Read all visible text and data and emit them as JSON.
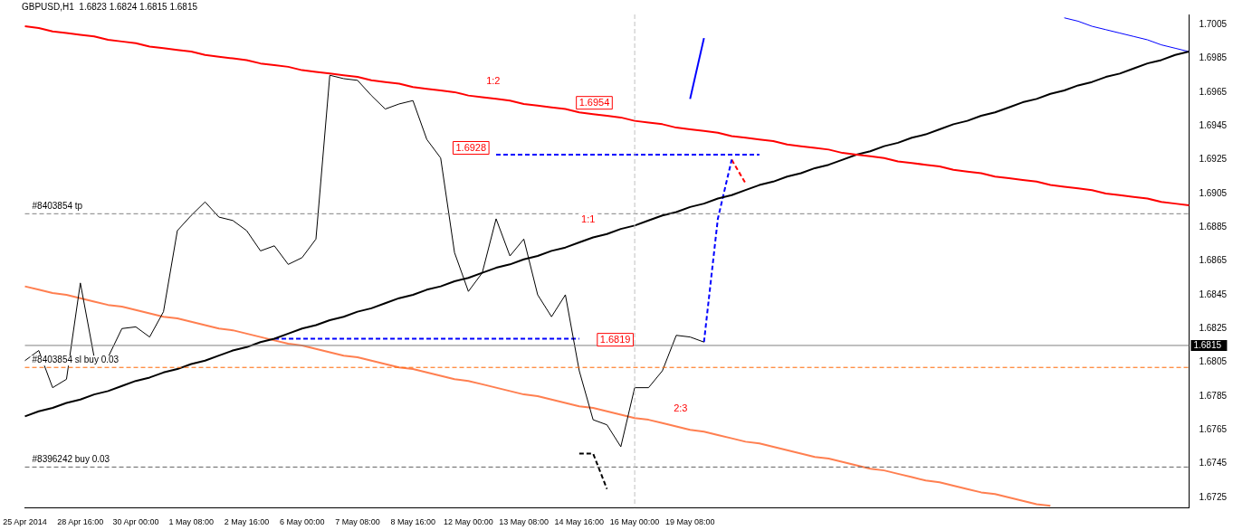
{
  "chart_data": {
    "type": "line",
    "title": "GBPUSD,H1  1.6823 1.6824 1.6815 1.6815",
    "categories": [
      "25 Apr 2014",
      null,
      null,
      null,
      "28 Apr 16:00",
      null,
      null,
      null,
      "30 Apr 00:00",
      null,
      null,
      null,
      "1 May 08:00",
      null,
      null,
      null,
      "2 May 16:00",
      null,
      null,
      null,
      "6 May 00:00",
      null,
      null,
      null,
      "7 May 08:00",
      null,
      null,
      null,
      "8 May 16:00",
      null,
      null,
      null,
      "12 May 00:00",
      null,
      null,
      null,
      "13 May 08:00",
      null,
      null,
      null,
      "14 May 16:00",
      null,
      null,
      null,
      "16 May 00:00",
      null,
      null,
      null,
      "19 May 08:00",
      null,
      null,
      null,
      null,
      null,
      null,
      null,
      null,
      null,
      null,
      null,
      null,
      null,
      null,
      null,
      null,
      null,
      null,
      null,
      null,
      null,
      null,
      null,
      null,
      null,
      null,
      null,
      null,
      null,
      null,
      null,
      null,
      null,
      null,
      null,
      null
    ],
    "ylim": [
      1.6719,
      1.7011
    ],
    "yticks": [
      1.6725,
      1.6745,
      1.6765,
      1.6785,
      1.6805,
      1.6825,
      1.6845,
      1.6865,
      1.6885,
      1.6905,
      1.6925,
      1.6945,
      1.6965,
      1.6985,
      1.7005
    ],
    "legend": false,
    "marker": "none",
    "series": [
      {
        "color": "#000000",
        "values": [
          1.6806,
          1.6812,
          1.679,
          1.6795,
          1.6852,
          1.6808,
          1.6808,
          1.6825,
          1.6826,
          1.682,
          1.6835,
          1.6883,
          1.6892,
          1.69,
          1.6891,
          1.6889,
          1.6883,
          1.6871,
          1.6874,
          1.6863,
          1.6867,
          1.6878,
          1.6975,
          1.6973,
          1.6972,
          1.6963,
          1.6955,
          1.6958,
          1.696,
          1.6937,
          1.6926,
          1.687,
          1.6847,
          1.6858,
          1.689,
          1.6868,
          1.6878,
          1.6845,
          1.6832,
          1.6845,
          1.68,
          1.6771,
          1.6768,
          1.6755,
          1.679,
          1.679,
          1.68,
          1.6821,
          1.682,
          1.6817,
          null,
          null,
          null,
          null,
          null,
          null,
          null,
          null,
          null,
          null,
          null,
          null,
          null,
          null,
          null,
          null,
          null,
          null,
          null,
          null,
          null,
          null,
          null,
          null,
          null,
          null,
          null,
          null,
          null,
          null,
          null,
          null,
          null,
          null,
          null
        ]
      },
      {
        "color": "#ff0000",
        "values": [
          1.7004,
          1.7003,
          1.7001,
          1.7,
          1.6999,
          1.6998,
          1.6996,
          1.6995,
          1.6994,
          1.6992,
          1.6991,
          1.699,
          1.6989,
          1.6987,
          1.6986,
          1.6985,
          1.6984,
          1.6982,
          1.6981,
          1.698,
          1.6978,
          1.6977,
          1.6976,
          1.6975,
          1.6974,
          1.6972,
          1.6971,
          1.697,
          1.6968,
          1.6967,
          1.6966,
          1.6965,
          1.6963,
          1.6962,
          1.6961,
          1.696,
          1.6958,
          1.6957,
          1.6956,
          1.6955,
          1.6953,
          1.6952,
          1.6951,
          1.695,
          1.6948,
          1.6947,
          1.6946,
          1.6944,
          1.6943,
          1.6942,
          1.6941,
          1.6939,
          1.6938,
          1.6937,
          1.6936,
          1.6934,
          1.6933,
          1.6932,
          1.6931,
          1.6929,
          1.6928,
          1.6927,
          1.6926,
          1.6924,
          1.6923,
          1.6922,
          1.6921,
          1.6919,
          1.6918,
          1.6917,
          1.6915,
          1.6914,
          1.6913,
          1.6912,
          1.691,
          1.6909,
          1.6908,
          1.6907,
          1.6905,
          1.6904,
          1.6903,
          1.6902,
          1.69,
          1.6899,
          1.6898
        ]
      },
      {
        "color": "#000000",
        "values": [
          1.6773,
          1.6776,
          1.6778,
          1.6781,
          1.6783,
          1.6786,
          1.6788,
          1.6791,
          1.6794,
          1.6796,
          1.6799,
          1.6801,
          1.6804,
          1.6806,
          1.6809,
          1.6812,
          1.6814,
          1.6817,
          1.6819,
          1.6822,
          1.6825,
          1.6827,
          1.683,
          1.6832,
          1.6835,
          1.6837,
          1.684,
          1.6843,
          1.6845,
          1.6848,
          1.685,
          1.6853,
          1.6855,
          1.6858,
          1.6861,
          1.6863,
          1.6866,
          1.6868,
          1.6871,
          1.6873,
          1.6876,
          1.6879,
          1.6881,
          1.6884,
          1.6886,
          1.6889,
          1.6892,
          1.6894,
          1.6897,
          1.6899,
          1.6902,
          1.6904,
          1.6907,
          1.691,
          1.6912,
          1.6915,
          1.6917,
          1.692,
          1.6922,
          1.6925,
          1.6928,
          1.693,
          1.6933,
          1.6935,
          1.6938,
          1.694,
          1.6943,
          1.6946,
          1.6948,
          1.6951,
          1.6953,
          1.6956,
          1.6959,
          1.6961,
          1.6964,
          1.6966,
          1.6969,
          1.6971,
          1.6974,
          1.6976,
          1.6979,
          1.6982,
          1.6984,
          1.6987,
          1.6989
        ]
      },
      {
        "color": "#ff7f50",
        "values": [
          1.685,
          1.6848,
          1.6846,
          1.6845,
          1.6843,
          1.6841,
          1.6839,
          1.6838,
          1.6836,
          1.6834,
          1.6832,
          1.6831,
          1.6829,
          1.6827,
          1.6825,
          1.6824,
          1.6822,
          1.682,
          1.6818,
          1.6816,
          1.6815,
          1.6813,
          1.6811,
          1.6809,
          1.6808,
          1.6806,
          1.6804,
          1.6802,
          1.6801,
          1.6799,
          1.6797,
          1.6795,
          1.6794,
          1.6792,
          1.679,
          1.6788,
          1.6786,
          1.6785,
          1.6783,
          1.6781,
          1.6779,
          1.6778,
          1.6776,
          1.6774,
          1.6772,
          1.6771,
          1.6769,
          1.6767,
          1.6765,
          1.6764,
          1.6762,
          1.676,
          1.6758,
          1.6757,
          1.6755,
          1.6753,
          1.6751,
          1.6749,
          1.6748,
          1.6746,
          1.6744,
          1.6742,
          1.6741,
          1.6739,
          1.6737,
          1.6735,
          1.6734,
          1.6732,
          1.673,
          1.6728,
          1.6727,
          1.6725,
          1.6723,
          1.6721,
          1.672,
          null,
          null,
          null,
          null,
          null,
          null,
          null,
          null,
          null,
          null
        ]
      },
      {
        "color": "#0000ff",
        "values": [
          null,
          null,
          null,
          null,
          null,
          null,
          null,
          null,
          null,
          null,
          null,
          null,
          null,
          null,
          null,
          null,
          null,
          null,
          null,
          null,
          null,
          null,
          null,
          null,
          null,
          null,
          null,
          null,
          null,
          null,
          null,
          null,
          null,
          null,
          null,
          null,
          null,
          null,
          null,
          null,
          null,
          null,
          null,
          null,
          null,
          null,
          null,
          null,
          1.6961,
          1.6997,
          null,
          null,
          null,
          null,
          null,
          null,
          null,
          null,
          null,
          null,
          null,
          null,
          null,
          null,
          null,
          null,
          null,
          null,
          null,
          null,
          null,
          null,
          null,
          null,
          null,
          null,
          null,
          null,
          null,
          null,
          null,
          null,
          null,
          null,
          null
        ]
      },
      {
        "color": "#0000ff",
        "values": [
          null,
          null,
          null,
          null,
          null,
          null,
          null,
          null,
          null,
          null,
          null,
          null,
          null,
          null,
          null,
          null,
          null,
          null,
          null,
          null,
          null,
          null,
          null,
          null,
          null,
          null,
          null,
          null,
          null,
          null,
          null,
          null,
          null,
          null,
          null,
          null,
          null,
          null,
          null,
          null,
          null,
          null,
          null,
          null,
          null,
          null,
          null,
          null,
          null,
          null,
          null,
          null,
          null,
          null,
          null,
          null,
          null,
          null,
          null,
          null,
          null,
          null,
          null,
          null,
          null,
          null,
          null,
          null,
          null,
          null,
          null,
          null,
          null,
          null,
          null,
          1.7009,
          1.7007,
          1.7004,
          1.7002,
          1.7,
          1.6998,
          1.6996,
          1.6993,
          1.6991,
          1.6989
        ]
      },
      {
        "color": "#0000ff",
        "line_style": "dashed",
        "values": [
          null,
          null,
          null,
          null,
          null,
          null,
          null,
          null,
          null,
          null,
          null,
          null,
          null,
          null,
          null,
          null,
          null,
          null,
          1.6819,
          1.6819,
          1.6819,
          1.6819,
          1.6819,
          1.6819,
          1.6819,
          1.6819,
          1.6819,
          1.6819,
          1.6819,
          1.6819,
          1.6819,
          1.6819,
          1.6819,
          1.6819,
          1.6819,
          1.6819,
          1.6819,
          1.6819,
          1.6819,
          1.6819,
          1.6819,
          null,
          null,
          null,
          null,
          null,
          null,
          null,
          null,
          null,
          null,
          null,
          null,
          null,
          null,
          null,
          null,
          null,
          null,
          null,
          null,
          null,
          null,
          null,
          null,
          null,
          null,
          null,
          null,
          null,
          null,
          null,
          null,
          null,
          null,
          null,
          null,
          null,
          null,
          null,
          null,
          null,
          null,
          null,
          null
        ]
      },
      {
        "color": "#0000ff",
        "line_style": "dashed",
        "values": [
          null,
          null,
          null,
          null,
          null,
          null,
          null,
          null,
          null,
          null,
          null,
          null,
          null,
          null,
          null,
          null,
          null,
          null,
          null,
          null,
          null,
          null,
          null,
          null,
          null,
          null,
          null,
          null,
          null,
          null,
          null,
          null,
          null,
          null,
          1.6928,
          1.6928,
          1.6928,
          1.6928,
          1.6928,
          1.6928,
          1.6928,
          1.6928,
          1.6928,
          1.6928,
          1.6928,
          1.6928,
          1.6928,
          1.6928,
          1.6928,
          1.6928,
          1.6928,
          1.6928,
          1.6928,
          1.6928,
          null,
          null,
          null,
          null,
          null,
          null,
          null,
          null,
          null,
          null,
          null,
          null,
          null,
          null,
          null,
          null,
          null,
          null,
          null,
          null,
          null,
          null,
          null,
          null,
          null,
          null,
          null,
          null,
          null,
          null,
          null
        ]
      },
      {
        "color": "#0000ff",
        "line_style": "dashed",
        "values": [
          null,
          null,
          null,
          null,
          null,
          null,
          null,
          null,
          null,
          null,
          null,
          null,
          null,
          null,
          null,
          null,
          null,
          null,
          null,
          null,
          null,
          null,
          null,
          null,
          null,
          null,
          null,
          null,
          null,
          null,
          null,
          null,
          null,
          null,
          null,
          null,
          null,
          null,
          null,
          null,
          null,
          null,
          null,
          null,
          null,
          null,
          null,
          null,
          null,
          1.6817,
          1.689,
          1.6925,
          null,
          null,
          null,
          null,
          null,
          null,
          null,
          null,
          null,
          null,
          null,
          null,
          null,
          null,
          null,
          null,
          null,
          null,
          null,
          null,
          null,
          null,
          null,
          null,
          null,
          null,
          null,
          null,
          null,
          null,
          null,
          null,
          null
        ]
      },
      {
        "color": "#ff0000",
        "line_style": "dashed",
        "values": [
          null,
          null,
          null,
          null,
          null,
          null,
          null,
          null,
          null,
          null,
          null,
          null,
          null,
          null,
          null,
          null,
          null,
          null,
          null,
          null,
          null,
          null,
          null,
          null,
          null,
          null,
          null,
          null,
          null,
          null,
          null,
          null,
          null,
          null,
          null,
          null,
          null,
          null,
          null,
          null,
          null,
          null,
          null,
          null,
          null,
          null,
          null,
          null,
          null,
          null,
          null,
          1.6925,
          1.6911,
          null,
          null,
          null,
          null,
          null,
          null,
          null,
          null,
          null,
          null,
          null,
          null,
          null,
          null,
          null,
          null,
          null,
          null,
          null,
          null,
          null,
          null,
          null,
          null,
          null,
          null,
          null,
          null,
          null,
          null,
          null,
          null
        ]
      },
      {
        "color": "#000000",
        "line_style": "dashed",
        "values": [
          null,
          null,
          null,
          null,
          null,
          null,
          null,
          null,
          null,
          null,
          null,
          null,
          null,
          null,
          null,
          null,
          null,
          null,
          null,
          null,
          null,
          null,
          null,
          null,
          null,
          null,
          null,
          null,
          null,
          null,
          null,
          null,
          null,
          null,
          null,
          null,
          null,
          null,
          null,
          null,
          1.6751,
          1.6751,
          1.673,
          null,
          null,
          null,
          null,
          null,
          null,
          null,
          null,
          null,
          null,
          null,
          null,
          null,
          null,
          null,
          null,
          null,
          null,
          null,
          null,
          null,
          null,
          null,
          null,
          null,
          null,
          null,
          null,
          null,
          null,
          null,
          null,
          null,
          null,
          null,
          null,
          null,
          null,
          null,
          null,
          null,
          null
        ]
      }
    ],
    "ref_lines": [
      {
        "axis": "y",
        "value": 1.6893,
        "label": "#8403854 tp",
        "color": "#808080",
        "line_style": "dashed"
      },
      {
        "axis": "y",
        "value": 1.6802,
        "label": "#8403854 sl buy 0.03",
        "color": "#ff6600",
        "line_style": "dashed"
      },
      {
        "axis": "y",
        "value": 1.6743,
        "label": "#8396242 buy 0.03",
        "color": "#606060",
        "line_style": "dashed"
      },
      {
        "axis": "y",
        "value": 1.6815,
        "label": "1.6815",
        "color": "#808080",
        "line_style": "solid"
      },
      {
        "axis": "x",
        "value": "16 May 00:00",
        "color": "#c0c0c0",
        "line_style": "dashed"
      }
    ],
    "annotations": [
      "1:2",
      "1.6954",
      "1.6928",
      "1:1",
      "1.6819",
      "2:3"
    ]
  }
}
